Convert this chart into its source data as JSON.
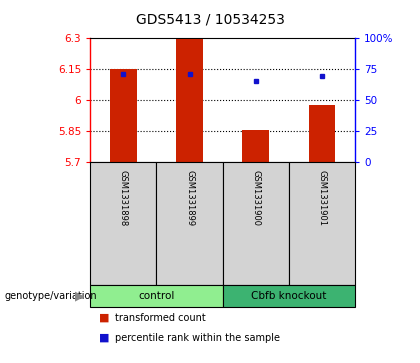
{
  "title": "GDS5413 / 10534253",
  "samples": [
    "GSM1331898",
    "GSM1331899",
    "GSM1331900",
    "GSM1331901"
  ],
  "bar_bottom": 5.7,
  "bar_values": [
    6.15,
    6.295,
    5.851,
    5.975
  ],
  "percentile_values": [
    6.127,
    6.127,
    6.092,
    6.117
  ],
  "ylim_left": [
    5.7,
    6.3
  ],
  "ylim_right": [
    0,
    100
  ],
  "yticks_left": [
    5.7,
    5.85,
    6.0,
    6.15,
    6.3
  ],
  "yticks_right": [
    0,
    25,
    50,
    75,
    100
  ],
  "ytick_labels_left": [
    "5.7",
    "5.85",
    "6",
    "6.15",
    "6.3"
  ],
  "ytick_labels_right": [
    "0",
    "25",
    "50",
    "75",
    "100%"
  ],
  "grid_lines": [
    5.85,
    6.0,
    6.15
  ],
  "bar_color": "#CC2200",
  "dot_color": "#1111CC",
  "bar_width": 0.4,
  "cell_bg": "#d3d3d3",
  "light_green": "#90EE90",
  "dark_green": "#3CB371",
  "n_samples": 4,
  "control_count": 2,
  "ko_count": 2
}
